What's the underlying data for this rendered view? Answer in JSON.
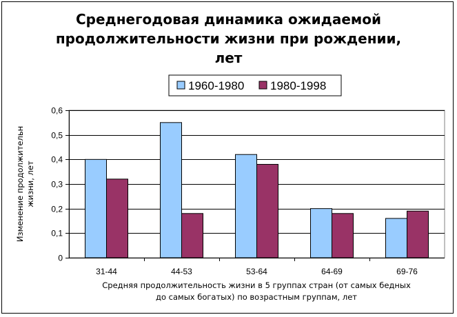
{
  "chart_data": {
    "type": "bar",
    "title": "Среднегодовая динамика ожидаемой\nпродолжительности жизни при рождении,\nлет",
    "categories": [
      "31-44",
      "44-53",
      "53-64",
      "64-69",
      "69-76"
    ],
    "series": [
      {
        "name": "1960-1980",
        "color": "#99ccff",
        "values": [
          0.4,
          0.55,
          0.42,
          0.2,
          0.16
        ]
      },
      {
        "name": "1980-1998",
        "color": "#993366",
        "values": [
          0.32,
          0.18,
          0.38,
          0.18,
          0.19
        ]
      }
    ],
    "ylim": [
      0,
      0.6
    ],
    "yticks": [
      "0",
      "0,1",
      "0,2",
      "0,3",
      "0,4",
      "0,5",
      "0,6"
    ],
    "ylabel_lines": [
      "Изменение продолжительн",
      "жизни, лет"
    ],
    "xlabel_lines": [
      "Средняя продолжительность жизни в 5 группах стран (от самых бедных",
      "до самых богатых) по возрастным группам, лет"
    ],
    "grid": true,
    "legend": "top"
  }
}
